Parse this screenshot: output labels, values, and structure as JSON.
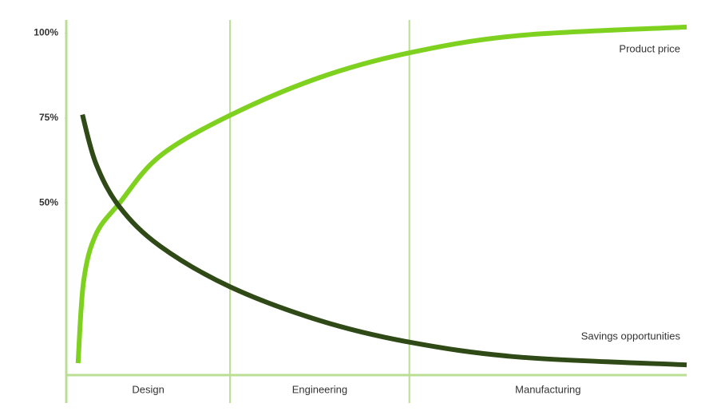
{
  "chart_data": {
    "type": "line",
    "categories": [
      "Design",
      "Engineering",
      "Manufacturing"
    ],
    "bands": [
      0,
      26.4,
      55.3,
      100
    ],
    "xlim": [
      0,
      100
    ],
    "ylim": [
      0,
      102
    ],
    "yticks": [
      {
        "value": 50,
        "label": "50%"
      },
      {
        "value": 75,
        "label": "75%"
      },
      {
        "value": 100,
        "label": "100%"
      }
    ],
    "axis_color": "#b9de94",
    "series": [
      {
        "name": "Product price",
        "color": "#7fd120",
        "x": [
          1.9,
          2.8,
          4.8,
          8.6,
          15.1,
          26.4,
          40.8,
          55.3,
          73,
          100
        ],
        "values": [
          2.8,
          27,
          40.8,
          50,
          63.8,
          75.8,
          86.9,
          94.2,
          99.3,
          101.8
        ]
      },
      {
        "name": "Savings opportunities",
        "color": "#2f4a17",
        "x": [
          2.6,
          4.8,
          8.6,
          15.1,
          26.4,
          40.8,
          55.3,
          73,
          100
        ],
        "values": [
          76,
          61.5,
          48.8,
          37.3,
          25.3,
          15.4,
          9,
          4.6,
          2.3
        ]
      }
    ]
  }
}
